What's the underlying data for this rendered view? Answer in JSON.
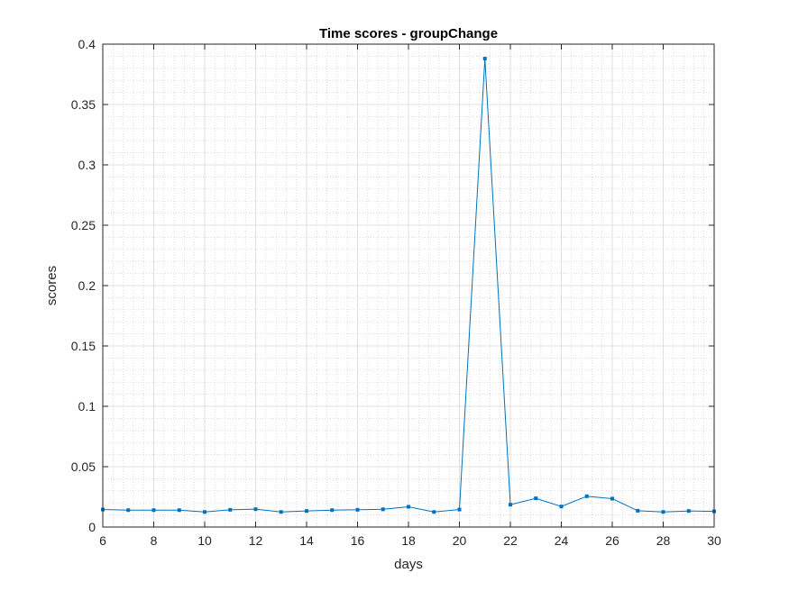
{
  "chart_data": {
    "type": "line",
    "title": "Time scores - groupChange",
    "xlabel": "days",
    "ylabel": "scores",
    "xlim": [
      6,
      30
    ],
    "ylim": [
      0,
      0.4
    ],
    "x_ticks": [
      6,
      8,
      10,
      12,
      14,
      16,
      18,
      20,
      22,
      24,
      26,
      28,
      30
    ],
    "y_ticks": [
      0,
      0.05,
      0.1,
      0.15,
      0.2,
      0.25,
      0.3,
      0.35,
      0.4
    ],
    "grid": true,
    "minor_grid": true,
    "line_color": "#0072BD",
    "marker": "square",
    "series": [
      {
        "x": [
          6,
          7,
          8,
          9,
          10,
          11,
          12,
          13,
          14,
          15,
          16,
          17,
          18,
          19,
          20,
          21,
          22,
          23,
          24,
          25,
          26,
          27,
          28,
          29,
          30
        ],
        "values": [
          0.0145,
          0.014,
          0.014,
          0.014,
          0.0125,
          0.0143,
          0.0148,
          0.0125,
          0.0133,
          0.014,
          0.0143,
          0.0147,
          0.0168,
          0.0125,
          0.0145,
          0.388,
          0.0185,
          0.0238,
          0.017,
          0.0255,
          0.0235,
          0.0135,
          0.0125,
          0.0133,
          0.013
        ]
      }
    ]
  }
}
